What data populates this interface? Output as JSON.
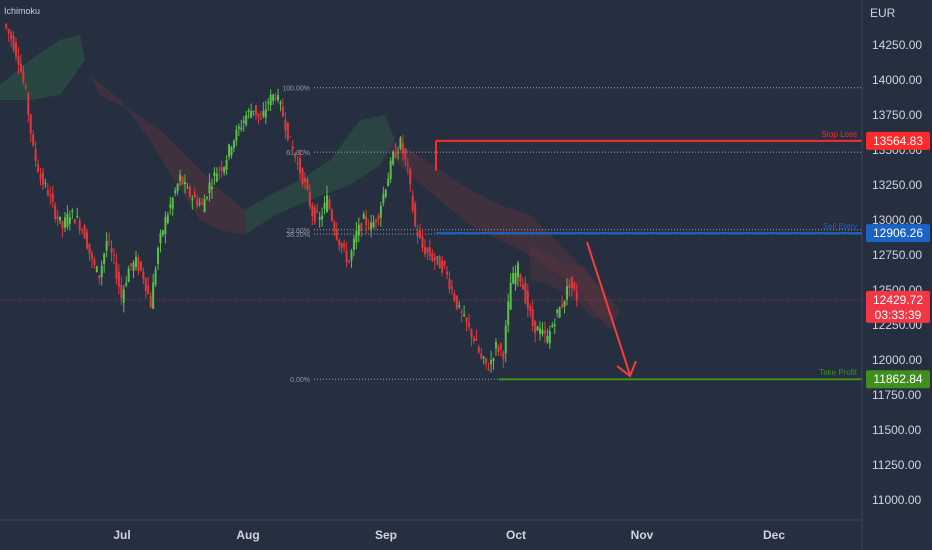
{
  "indicator_label": "Ichimoku",
  "currency": "EUR",
  "colors": {
    "background": "#252f3f",
    "up_candle": "#5cbf4a",
    "down_candle": "#e2383b",
    "stop_loss": "#ff2a2a",
    "entry": "#1b63c6",
    "take_profit": "#3f8f1f",
    "current_price": "#f23645",
    "cloud_bear": "#6b3a45",
    "cloud_bull": "#2d5a45",
    "arrow": "#ff3b3b"
  },
  "price_axis": {
    "min": 11000,
    "max": 14250,
    "ticks": [
      "14250.00",
      "14000.00",
      "13750.00",
      "13500.00",
      "13250.00",
      "13000.00",
      "12750.00",
      "12500.00",
      "12250.00",
      "12000.00",
      "11750.00",
      "11500.00",
      "11250.00",
      "11000.00"
    ]
  },
  "time_axis": {
    "labels": [
      "Jul",
      "Aug",
      "Sep",
      "Oct",
      "Nov",
      "Dec"
    ]
  },
  "levels": {
    "stop_loss": {
      "label": "Stop Loss",
      "value": "13564.83",
      "price": 13564.83
    },
    "entry": {
      "label": "Sell Entry",
      "value": "12906.26",
      "price": 12906.26
    },
    "take_profit": {
      "label": "Take Profit",
      "value": "11862.84",
      "price": 11862.84
    },
    "current": {
      "value": "12429.72",
      "countdown": "03:33:39",
      "price": 12429.72
    }
  },
  "fibonacci": [
    {
      "label": "100.00%",
      "price": 13945
    },
    {
      "label": "61.80%",
      "price": 13485
    },
    {
      "label": "23.60%",
      "price": 12930
    },
    {
      "label": "38.20%",
      "price": 12900
    },
    {
      "label": "0.00%",
      "price": 11862.84
    }
  ],
  "chart_data": {
    "type": "candlestick",
    "currency": "EUR",
    "y_range": [
      11000,
      14250
    ],
    "x_labels": [
      "Jul",
      "Aug",
      "Sep",
      "Oct",
      "Nov",
      "Dec"
    ],
    "close_series": [
      14400,
      14300,
      14150,
      13900,
      13500,
      13300,
      13200,
      13050,
      12950,
      13050,
      13000,
      12900,
      12700,
      12600,
      12850,
      12700,
      12450,
      12650,
      12700,
      12600,
      12400,
      12800,
      13000,
      13150,
      13300,
      13200,
      13150,
      13100,
      13250,
      13350,
      13400,
      13550,
      13650,
      13750,
      13800,
      13700,
      13850,
      13900,
      13750,
      13550,
      13400,
      13250,
      13050,
      13000,
      13150,
      12950,
      12800,
      12700,
      12900,
      13000,
      12950,
      13050,
      13250,
      13450,
      13550,
      13350,
      12950,
      12800,
      12750,
      12700,
      12650,
      12500,
      12350,
      12250,
      12150,
      12000,
      11950,
      12100,
      12050,
      12550,
      12650,
      12450,
      12250,
      12200,
      12150,
      12300,
      12400,
      12550,
      12450
    ]
  }
}
